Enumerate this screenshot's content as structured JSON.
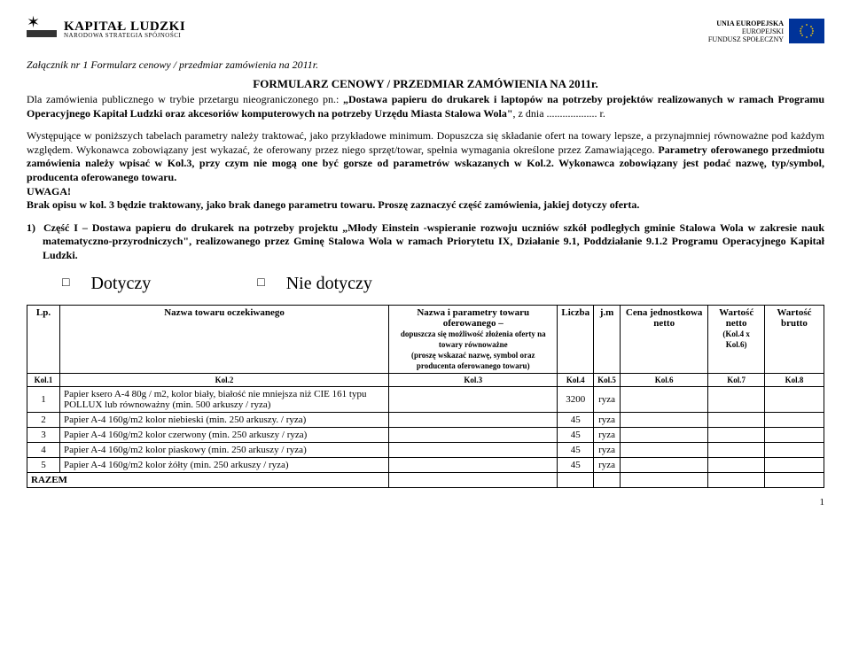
{
  "header": {
    "left_logo": {
      "title": "KAPITAŁ LUDZKI",
      "subtitle": "NARODOWA STRATEGIA SPÓJNOŚCI"
    },
    "right_logo": {
      "line1": "UNIA EUROPEJSKA",
      "line2": "EUROPEJSKI",
      "line3": "FUNDUSZ SPOŁECZNY"
    }
  },
  "attachment_title": "Załącznik nr 1  Formularz cenowy / przedmiar zamówienia na 2011r.",
  "form_title": "FORMULARZ CENOWY / PRZEDMIAR ZAMÓWIENIA NA 2011r.",
  "paragraph1_part1": "Dla zamówienia publicznego w trybie przetargu nieograniczonego pn.: ",
  "paragraph1_bold": "„Dostawa papieru do drukarek i laptopów na potrzeby projektów realizowanych w ramach Programu Operacyjnego Kapitał Ludzki oraz akcesoriów komputerowych na potrzeby Urzędu Miasta Stalowa Wola\"",
  "paragraph1_part2": ", z dnia ................... r.",
  "paragraph2_a": "Występujące w poniższych tabelach parametry należy traktować, jako przykładowe minimum. Dopuszcza się składanie ofert na towary lepsze, a przynajmniej równoważne pod każdym względem. Wykonawca zobowiązany jest wykazać, że oferowany przez niego sprzęt/towar, spełnia wymagania określone przez Zamawiającego. ",
  "paragraph2_bold1": "Parametry oferowanego przedmiotu zamówienia należy wpisać w Kol.3, przy czym nie mogą one być gorsze od parametrów wskazanych w Kol.2. Wykonawca zobowiązany jest podać nazwę, typ/symbol, producenta oferowanego towaru.",
  "uwaga": "UWAGA!",
  "paragraph2_bold2": "Brak opisu w kol. 3 będzie traktowany, jako brak danego parametru towaru. Proszę zaznaczyć część zamówienia, jakiej dotyczy oferta.",
  "section1_num": "1)",
  "section1_lead": "Część I – Dostawa papieru do drukarek na potrzeby projektu ",
  "section1_bold": "„Młody Einstein -wspieranie rozwoju uczniów szkół podległych gminie Stalowa Wola w zakresie nauk matematyczno-przyrodniczych\", realizowanego przez Gminę Stalowa Wola w ramach Priorytetu IX, Działanie 9.1, Poddziałanie 9.1.2 Programu Operacyjnego Kapitał Ludzki.",
  "options": {
    "yes": "Dotyczy",
    "no": "Nie dotyczy",
    "box": "□"
  },
  "table": {
    "headers": {
      "lp": "Lp.",
      "name_expected": "Nazwa towaru oczekiwanego",
      "name_offered": "Nazwa i parametry towaru oferowanego –",
      "name_offered_sub1": "dopuszcza się możliwość złożenia oferty na towary równoważne",
      "name_offered_sub2": "(proszę wskazać nazwę, symbol oraz producenta oferowanego towaru)",
      "qty": "Liczba",
      "unit": "j.m",
      "unit_price": "Cena jednostkowa netto",
      "net_value": "Wartość netto",
      "net_value_sub": "(Kol.4 x Kol.6)",
      "gross_value": "Wartość brutto"
    },
    "col_labels": {
      "c1": "Kol.1",
      "c2": "Kol.2",
      "c3": "Kol.3",
      "c4": "Kol.4",
      "c5": "Kol.5",
      "c6": "Kol.6",
      "c7": "Kol.7",
      "c8": "Kol.8"
    },
    "rows": [
      {
        "lp": "1",
        "desc": "Papier ksero A-4 80g / m2, kolor biały, białość nie mniejsza niż CIE 161 typu POLLUX lub równoważny (min. 500 arkuszy / ryza)",
        "qty": "3200",
        "unit": "ryza"
      },
      {
        "lp": "2",
        "desc": "Papier A-4 160g/m2 kolor niebieski (min. 250 arkuszy. / ryza)",
        "qty": "45",
        "unit": "ryza"
      },
      {
        "lp": "3",
        "desc": "Papier A-4 160g/m2 kolor czerwony (min. 250 arkuszy / ryza)",
        "qty": "45",
        "unit": "ryza"
      },
      {
        "lp": "4",
        "desc": "Papier A-4 160g/m2 kolor  piaskowy (min. 250 arkuszy / ryza)",
        "qty": "45",
        "unit": "ryza"
      },
      {
        "lp": "5",
        "desc": "Papier A-4 160g/m2 kolor żółty (min. 250 arkuszy / ryza)",
        "qty": "45",
        "unit": "ryza"
      }
    ],
    "razem": "RAZEM"
  },
  "page_number": "1"
}
